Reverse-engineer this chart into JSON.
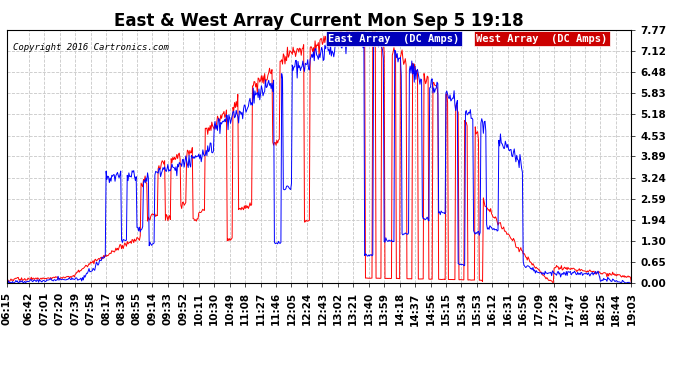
{
  "title": "East & West Array Current Mon Sep 5 19:18",
  "copyright": "Copyright 2016 Cartronics.com",
  "ylabel_ticks": [
    0.0,
    0.65,
    1.3,
    1.94,
    2.59,
    3.24,
    3.89,
    4.53,
    5.18,
    5.83,
    6.48,
    7.12,
    7.77
  ],
  "ymax": 7.77,
  "ymin": 0.0,
  "east_label": "East Array  (DC Amps)",
  "west_label": "West Array  (DC Amps)",
  "east_color": "#0000ff",
  "west_color": "#ff0000",
  "bg_color": "#ffffff",
  "grid_color": "#c8c8c8",
  "title_fontsize": 12,
  "tick_fontsize": 7.5,
  "legend_bg_east": "#0000bb",
  "legend_bg_west": "#cc0000",
  "tick_times": [
    "06:15",
    "06:42",
    "07:01",
    "07:20",
    "07:39",
    "07:58",
    "08:17",
    "08:36",
    "08:55",
    "09:14",
    "09:33",
    "09:52",
    "10:11",
    "10:30",
    "10:49",
    "11:08",
    "11:27",
    "11:46",
    "12:05",
    "12:24",
    "12:43",
    "13:02",
    "13:21",
    "13:40",
    "13:59",
    "14:18",
    "14:37",
    "14:56",
    "15:15",
    "15:34",
    "15:53",
    "16:12",
    "16:31",
    "16:50",
    "17:09",
    "17:28",
    "17:47",
    "18:06",
    "18:25",
    "18:44",
    "19:03"
  ]
}
